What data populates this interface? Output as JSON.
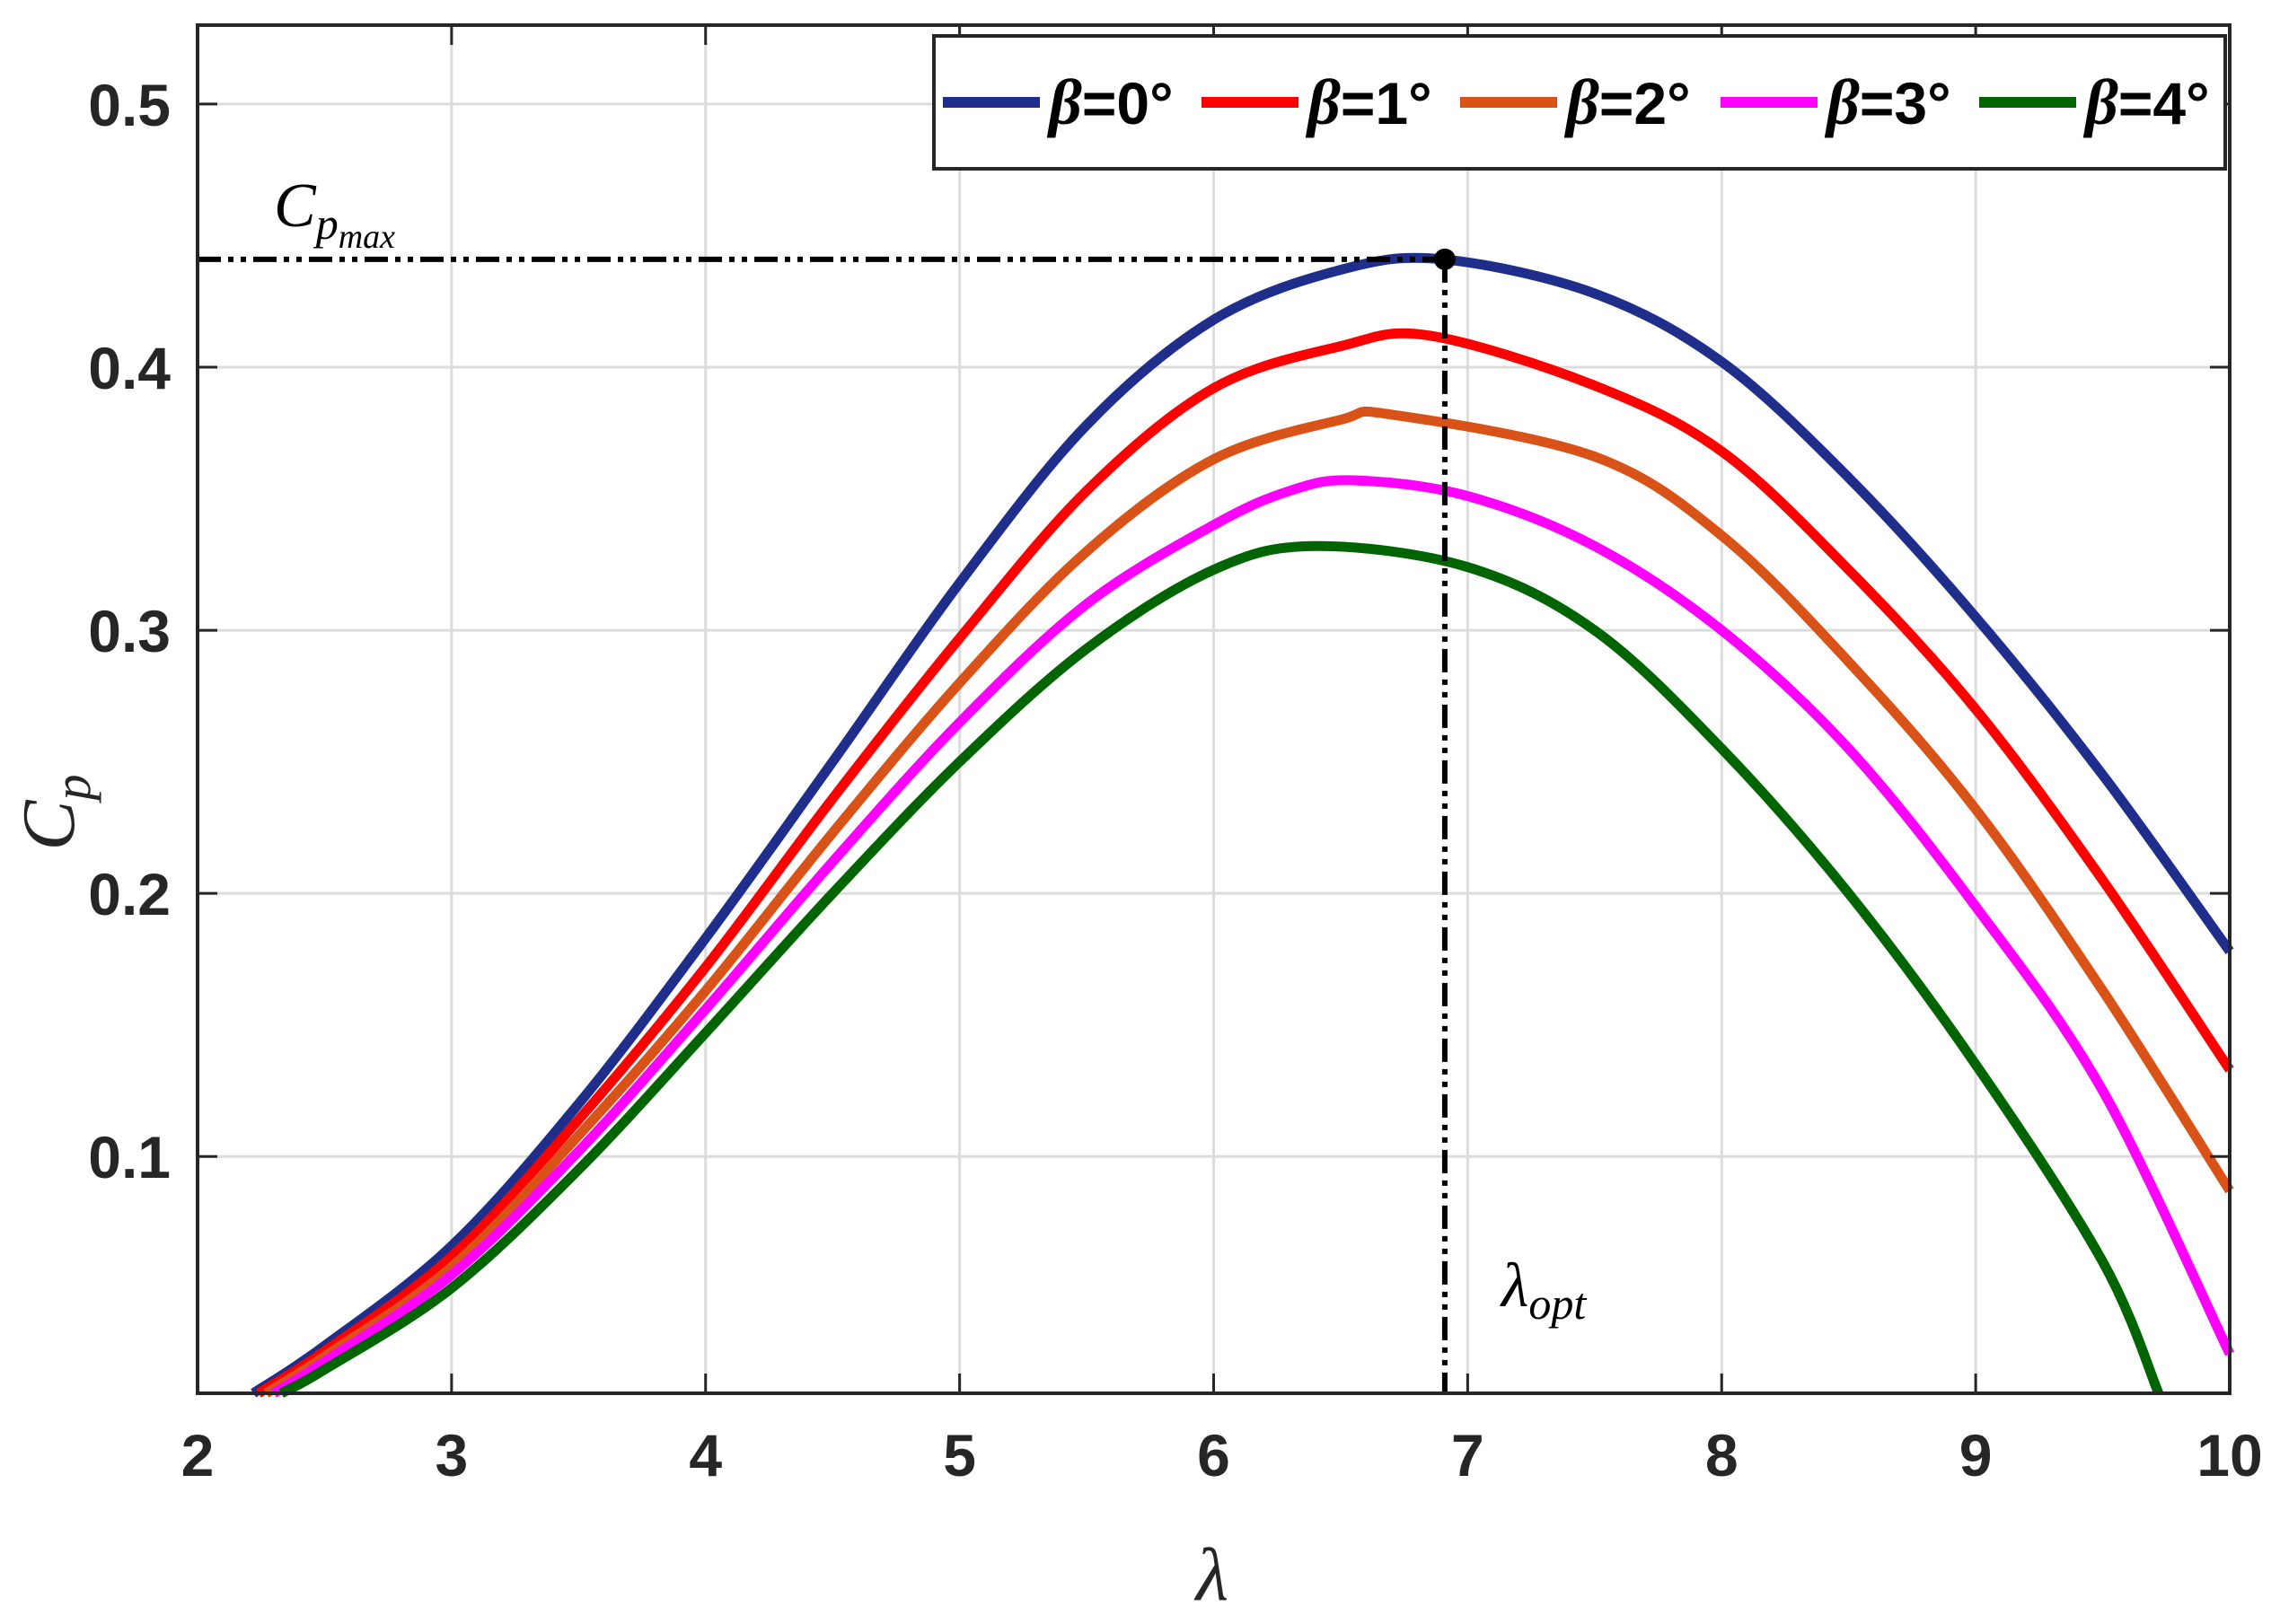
{
  "chart_data": {
    "type": "line",
    "xlabel": "λ",
    "ylabel": {
      "main": "C",
      "sub": "p"
    },
    "xlim": [
      2,
      10
    ],
    "ylim": [
      0.01,
      0.53
    ],
    "xticks": [
      "2",
      "3",
      "4",
      "5",
      "6",
      "7",
      "8",
      "9",
      "10"
    ],
    "yticks": [
      "0.1",
      "0.2",
      "0.3",
      "0.4",
      "0.5"
    ],
    "grid": true,
    "legend_position": "top-right",
    "legend_orientation": "horizontal",
    "series": [
      {
        "name": "β=0°",
        "name_symbol": "β",
        "name_value": "=0°",
        "color": "#1f2e8a",
        "x": [
          2.22,
          2.5,
          3.0,
          3.5,
          4.0,
          4.5,
          5.0,
          5.5,
          6.0,
          6.5,
          6.9,
          7.5,
          8.0,
          8.5,
          9.0,
          9.5,
          10.0
        ],
        "y": [
          0.01,
          0.028,
          0.066,
          0.12,
          0.183,
          0.25,
          0.318,
          0.378,
          0.418,
          0.437,
          0.441,
          0.428,
          0.402,
          0.358,
          0.305,
          0.245,
          0.178
        ]
      },
      {
        "name": "β=1°",
        "name_symbol": "β",
        "name_value": "=1°",
        "color": "#ff0000",
        "x": [
          2.24,
          2.5,
          3.0,
          3.5,
          4.0,
          4.5,
          5.0,
          5.5,
          6.0,
          6.5,
          6.85,
          7.5,
          8.0,
          8.5,
          9.0,
          9.5,
          10.0
        ],
        "y": [
          0.01,
          0.026,
          0.062,
          0.114,
          0.172,
          0.236,
          0.297,
          0.353,
          0.392,
          0.408,
          0.412,
          0.393,
          0.368,
          0.323,
          0.27,
          0.205,
          0.133
        ]
      },
      {
        "name": "β=2°",
        "name_symbol": "β",
        "name_value": "=2°",
        "color": "#d95319",
        "x": [
          2.27,
          2.5,
          3.0,
          3.5,
          4.0,
          4.5,
          5.0,
          5.5,
          6.0,
          6.5,
          6.7,
          7.5,
          8.0,
          8.5,
          9.0,
          9.5,
          10.0
        ],
        "y": [
          0.01,
          0.024,
          0.058,
          0.108,
          0.163,
          0.223,
          0.28,
          0.33,
          0.365,
          0.38,
          0.382,
          0.366,
          0.336,
          0.288,
          0.232,
          0.163,
          0.087
        ]
      },
      {
        "name": "β=3°",
        "name_symbol": "β",
        "name_value": "=3°",
        "color": "#ff00ff",
        "x": [
          2.3,
          2.5,
          3.0,
          3.5,
          4.0,
          4.5,
          5.0,
          5.5,
          6.0,
          6.3,
          6.55,
          7.0,
          7.5,
          8.0,
          8.5,
          9.0,
          9.5,
          10.0
        ],
        "y": [
          0.01,
          0.022,
          0.055,
          0.102,
          0.156,
          0.212,
          0.265,
          0.31,
          0.34,
          0.353,
          0.357,
          0.351,
          0.332,
          0.3,
          0.255,
          0.195,
          0.125,
          0.025
        ]
      },
      {
        "name": "β=4°",
        "name_symbol": "β",
        "name_value": "=4°",
        "color": "#006400",
        "x": [
          2.33,
          2.5,
          3.0,
          3.5,
          4.0,
          4.5,
          5.0,
          5.5,
          6.0,
          6.4,
          7.0,
          7.5,
          8.0,
          8.5,
          9.0,
          9.5,
          9.72
        ],
        "y": [
          0.01,
          0.019,
          0.05,
          0.095,
          0.147,
          0.2,
          0.25,
          0.293,
          0.323,
          0.332,
          0.324,
          0.3,
          0.255,
          0.2,
          0.135,
          0.06,
          0.01
        ]
      }
    ],
    "annotations": {
      "cpmax": {
        "label_main": "C",
        "label_sub": "p",
        "label_subsub": "max",
        "value": 0.441
      },
      "lambda_opt": {
        "label_main": "λ",
        "label_sub": "opt",
        "value": 6.91
      },
      "marker": {
        "x": 6.91,
        "y": 0.441
      }
    }
  }
}
